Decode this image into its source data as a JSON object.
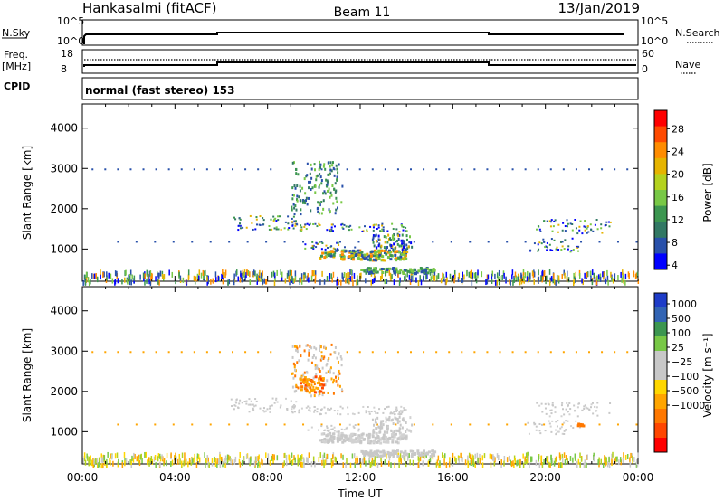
{
  "header": {
    "station": "Hankasalmi (fitACF)",
    "beam": "Beam 11",
    "date": "13/Jan/2019"
  },
  "top_panels": {
    "nsky_label": "N.Sky",
    "nsearch_label": "N.Search",
    "nsky_ticks": [
      "10^5",
      "10^0"
    ],
    "nsearch_ticks": [
      "10^5",
      "10^0"
    ],
    "freq_label": "Freq.",
    "freq_unit": "[MHz]",
    "freq_ticks": [
      "18",
      "8"
    ],
    "nave_label": "Nave",
    "nave_ticks": [
      "60",
      "0"
    ],
    "cpid_label": "CPID",
    "cpid_text": "normal (fast stereo) 153"
  },
  "chart_data": [
    {
      "type": "heatmap",
      "name": "power",
      "ylabel": "Slant Range [km]",
      "ylim": [
        200,
        4600
      ],
      "yticks": [
        1000,
        2000,
        3000,
        4000
      ],
      "xlim": [
        0,
        24
      ],
      "colorbar": {
        "label": "Power [dB]",
        "ticks": [
          "28",
          "24",
          "20",
          "16",
          "12",
          "8",
          "4"
        ],
        "colors": [
          "#ff0000",
          "#ff4a00",
          "#ff8c00",
          "#e6b400",
          "#b4d21e",
          "#78c846",
          "#3c9650",
          "#327864",
          "#2850aa",
          "#0000ff"
        ]
      }
    },
    {
      "type": "heatmap",
      "name": "velocity",
      "ylabel": "Slant Range [km]",
      "ylim": [
        200,
        4600
      ],
      "yticks": [
        1000,
        2000,
        3000,
        4000
      ],
      "xlim": [
        0,
        24
      ],
      "xlabel": "Time UT",
      "xticks": [
        "00:00",
        "04:00",
        "08:00",
        "12:00",
        "16:00",
        "20:00",
        "00:00"
      ],
      "colorbar": {
        "label": "Velocity [m s⁻¹]",
        "ticks": [
          "1000",
          "500",
          "100",
          "25",
          "−25",
          "−100",
          "−500",
          "−1000"
        ],
        "colors": [
          "#1e3cc8",
          "#3264b4",
          "#3c9650",
          "#78c846",
          "#c8c8c8",
          "#c8c8c8",
          "#ffd700",
          "#ffa500",
          "#ff7800",
          "#ff4600",
          "#ff0000"
        ]
      }
    }
  ]
}
